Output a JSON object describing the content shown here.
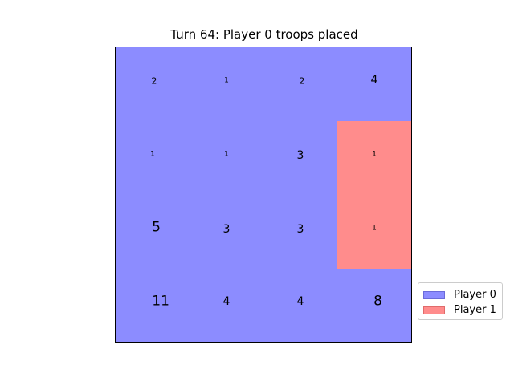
{
  "title": "Turn 64: Player 0 troops placed",
  "colors": {
    "player_0": "#8c8cff",
    "player_1": "#ff8c8c",
    "player_0_edge": "#6b6bd9",
    "player_1_edge": "#e06b6b"
  },
  "legend": [
    {
      "label": "Player 0",
      "player": 0
    },
    {
      "label": "Player 1",
      "player": 1
    }
  ],
  "grid": {
    "rows": 4,
    "cols": 4,
    "cells": [
      [
        {
          "owner": 0,
          "troops": "2"
        },
        {
          "owner": 0,
          "troops": "1"
        },
        {
          "owner": 0,
          "troops": "2"
        },
        {
          "owner": 0,
          "troops": "4"
        }
      ],
      [
        {
          "owner": 0,
          "troops": "1"
        },
        {
          "owner": 0,
          "troops": "1"
        },
        {
          "owner": 0,
          "troops": "3"
        },
        {
          "owner": 1,
          "troops": "1"
        }
      ],
      [
        {
          "owner": 0,
          "troops": "5"
        },
        {
          "owner": 0,
          "troops": "3"
        },
        {
          "owner": 0,
          "troops": "3"
        },
        {
          "owner": 1,
          "troops": "1"
        }
      ],
      [
        {
          "owner": 0,
          "troops": "11"
        },
        {
          "owner": 0,
          "troops": "4"
        },
        {
          "owner": 0,
          "troops": "4"
        },
        {
          "owner": 0,
          "troops": "8"
        }
      ]
    ]
  }
}
